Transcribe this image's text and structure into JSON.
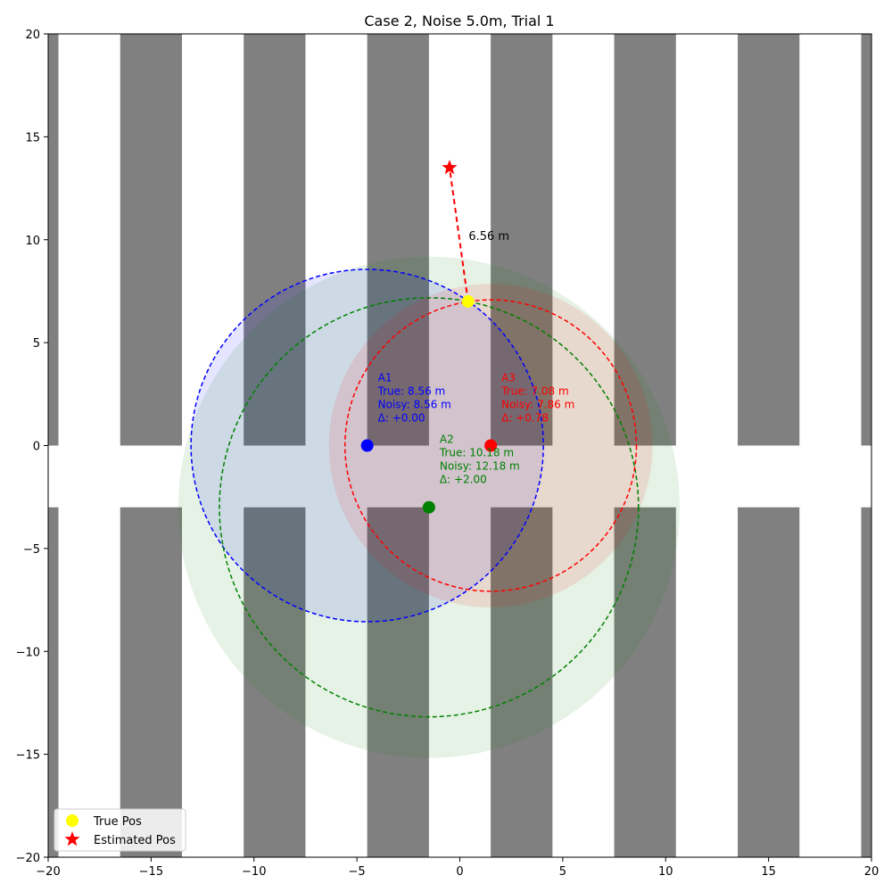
{
  "chart_data": {
    "type": "scatter",
    "title": "Case 2, Noise 5.0m, Trial 1",
    "xlabel": "",
    "ylabel": "",
    "xlim": [
      -20,
      20
    ],
    "ylim": [
      -20,
      20
    ],
    "xticks": [
      -20,
      -15,
      -10,
      -5,
      0,
      5,
      10,
      15,
      20
    ],
    "yticks": [
      -20,
      -15,
      -10,
      -5,
      0,
      5,
      10,
      15,
      20
    ],
    "grid": false,
    "legend_position": "lower-left",
    "colors": {
      "obstacle": "#808080",
      "a1": "#0000ff",
      "a2": "#008000",
      "a3": "#ff0000",
      "true_pos": "#ffff00",
      "est_pos": "#ff0000"
    },
    "obstacles": [
      {
        "x0": -20,
        "x1": -19.5,
        "y0": 0,
        "y1": 20
      },
      {
        "x0": -16.5,
        "x1": -13.5,
        "y0": 0,
        "y1": 20
      },
      {
        "x0": -10.5,
        "x1": -7.5,
        "y0": 0,
        "y1": 20
      },
      {
        "x0": -4.5,
        "x1": -1.5,
        "y0": 0,
        "y1": 20
      },
      {
        "x0": 1.5,
        "x1": 4.5,
        "y0": 0,
        "y1": 20
      },
      {
        "x0": 7.5,
        "x1": 10.5,
        "y0": 0,
        "y1": 20
      },
      {
        "x0": 13.5,
        "x1": 16.5,
        "y0": 0,
        "y1": 20
      },
      {
        "x0": 19.5,
        "x1": 20,
        "y0": 0,
        "y1": 20
      },
      {
        "x0": -20,
        "x1": -19.5,
        "y0": -20,
        "y1": -3
      },
      {
        "x0": -16.5,
        "x1": -13.5,
        "y0": -20,
        "y1": -3
      },
      {
        "x0": -10.5,
        "x1": -7.5,
        "y0": -20,
        "y1": -3
      },
      {
        "x0": -4.5,
        "x1": -1.5,
        "y0": -20,
        "y1": -3
      },
      {
        "x0": 1.5,
        "x1": 4.5,
        "y0": -20,
        "y1": -3
      },
      {
        "x0": 7.5,
        "x1": 10.5,
        "y0": -20,
        "y1": -3
      },
      {
        "x0": 13.5,
        "x1": 16.5,
        "y0": -20,
        "y1": -3
      },
      {
        "x0": 19.5,
        "x1": 20,
        "y0": -20,
        "y1": -3
      }
    ],
    "anchors": [
      {
        "id": "A1",
        "x": -4.5,
        "y": 0,
        "true_range": 8.56,
        "noisy_range": 8.56,
        "color": "#0000ff",
        "labels": [
          "A1",
          "True: 8.56 m",
          "Noisy: 8.56 m",
          "Δ: +0.00"
        ]
      },
      {
        "id": "A2",
        "x": -1.5,
        "y": -3,
        "true_range": 10.18,
        "noisy_range": 12.18,
        "color": "#008000",
        "labels": [
          "A2",
          "True: 10.18 m",
          "Noisy: 12.18 m",
          "Δ: +2.00"
        ]
      },
      {
        "id": "A3",
        "x": 1.5,
        "y": 0,
        "true_range": 7.08,
        "noisy_range": 7.86,
        "color": "#ff0000",
        "labels": [
          "A3",
          "True: 7.08 m",
          "Noisy: 7.86 m",
          "Δ: +0.78"
        ]
      }
    ],
    "true_pos": {
      "x": 0.4,
      "y": 7.0
    },
    "estimated_pos": {
      "x": -0.5,
      "y": 13.5
    },
    "error_label": "6.56 m",
    "legend": [
      {
        "label": "True Pos",
        "marker": "circle",
        "color": "#ffff00"
      },
      {
        "label": "Estimated Pos",
        "marker": "star",
        "color": "#ff0000"
      }
    ]
  }
}
